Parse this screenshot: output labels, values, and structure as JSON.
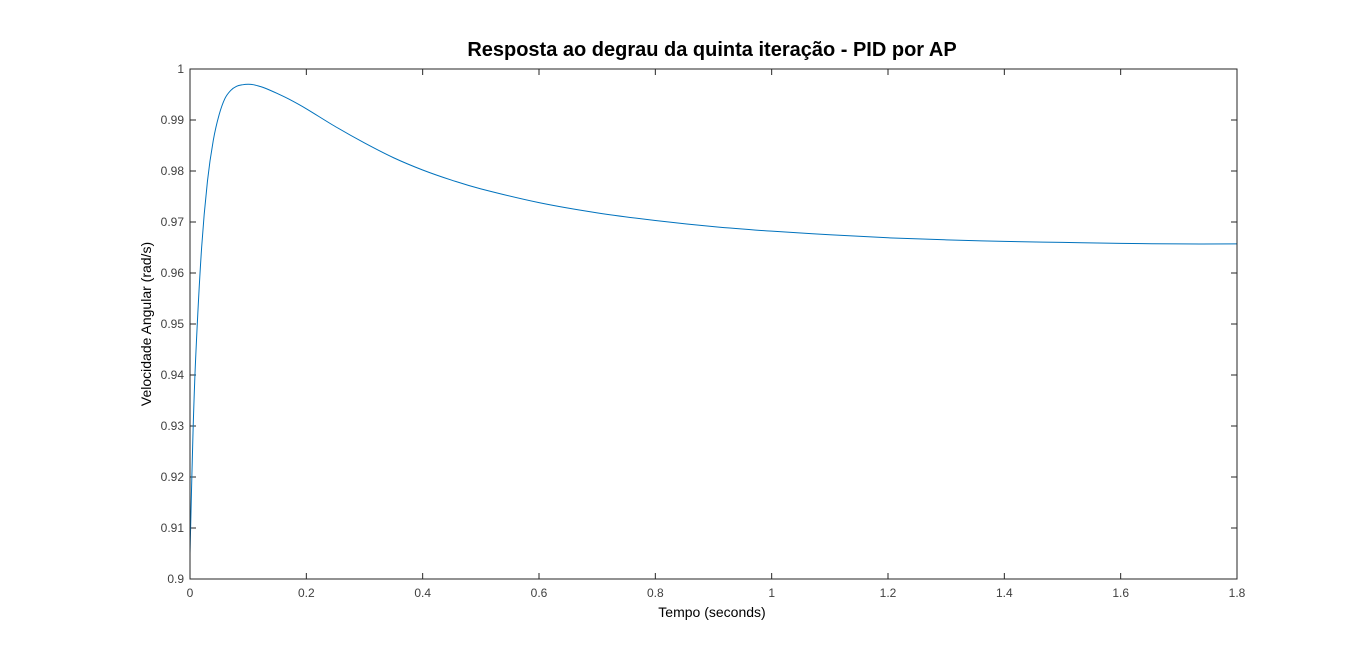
{
  "chart_data": {
    "type": "line",
    "title": "Resposta ao degrau da quinta iteração - PID por AP",
    "xlabel": "Tempo (seconds)",
    "ylabel": "Velocidade Angular (rad/s)",
    "xlim": [
      0,
      1.8
    ],
    "ylim": [
      0.9,
      1.0
    ],
    "x_ticks": [
      "0",
      "0.2",
      "0.4",
      "0.6",
      "0.8",
      "1",
      "1.2",
      "1.4",
      "1.6",
      "1.8"
    ],
    "y_ticks": [
      "0.9",
      "0.91",
      "0.92",
      "0.93",
      "0.94",
      "0.95",
      "0.96",
      "0.97",
      "0.98",
      "0.99",
      "1"
    ],
    "grid": false,
    "box": true,
    "series": [
      {
        "color": "#0072BD",
        "x": [
          0,
          0.005,
          0.01,
          0.02,
          0.03,
          0.04,
          0.05,
          0.06,
          0.07,
          0.08,
          0.09,
          0.1,
          0.11,
          0.12,
          0.13,
          0.15,
          0.17,
          0.2,
          0.25,
          0.3,
          0.35,
          0.4,
          0.45,
          0.5,
          0.6,
          0.7,
          0.8,
          0.9,
          1.0,
          1.1,
          1.2,
          1.3,
          1.4,
          1.5,
          1.6,
          1.7,
          1.8
        ],
        "y": [
          0.905,
          0.928,
          0.944,
          0.965,
          0.978,
          0.986,
          0.991,
          0.9942,
          0.9958,
          0.9966,
          0.9969,
          0.997,
          0.9969,
          0.9966,
          0.9962,
          0.9952,
          0.9941,
          0.9922,
          0.9887,
          0.9855,
          0.9826,
          0.9802,
          0.9782,
          0.9765,
          0.9738,
          0.9718,
          0.9703,
          0.9691,
          0.9682,
          0.9675,
          0.9669,
          0.9665,
          0.9662,
          0.966,
          0.9658,
          0.9657,
          0.9657
        ]
      }
    ]
  }
}
